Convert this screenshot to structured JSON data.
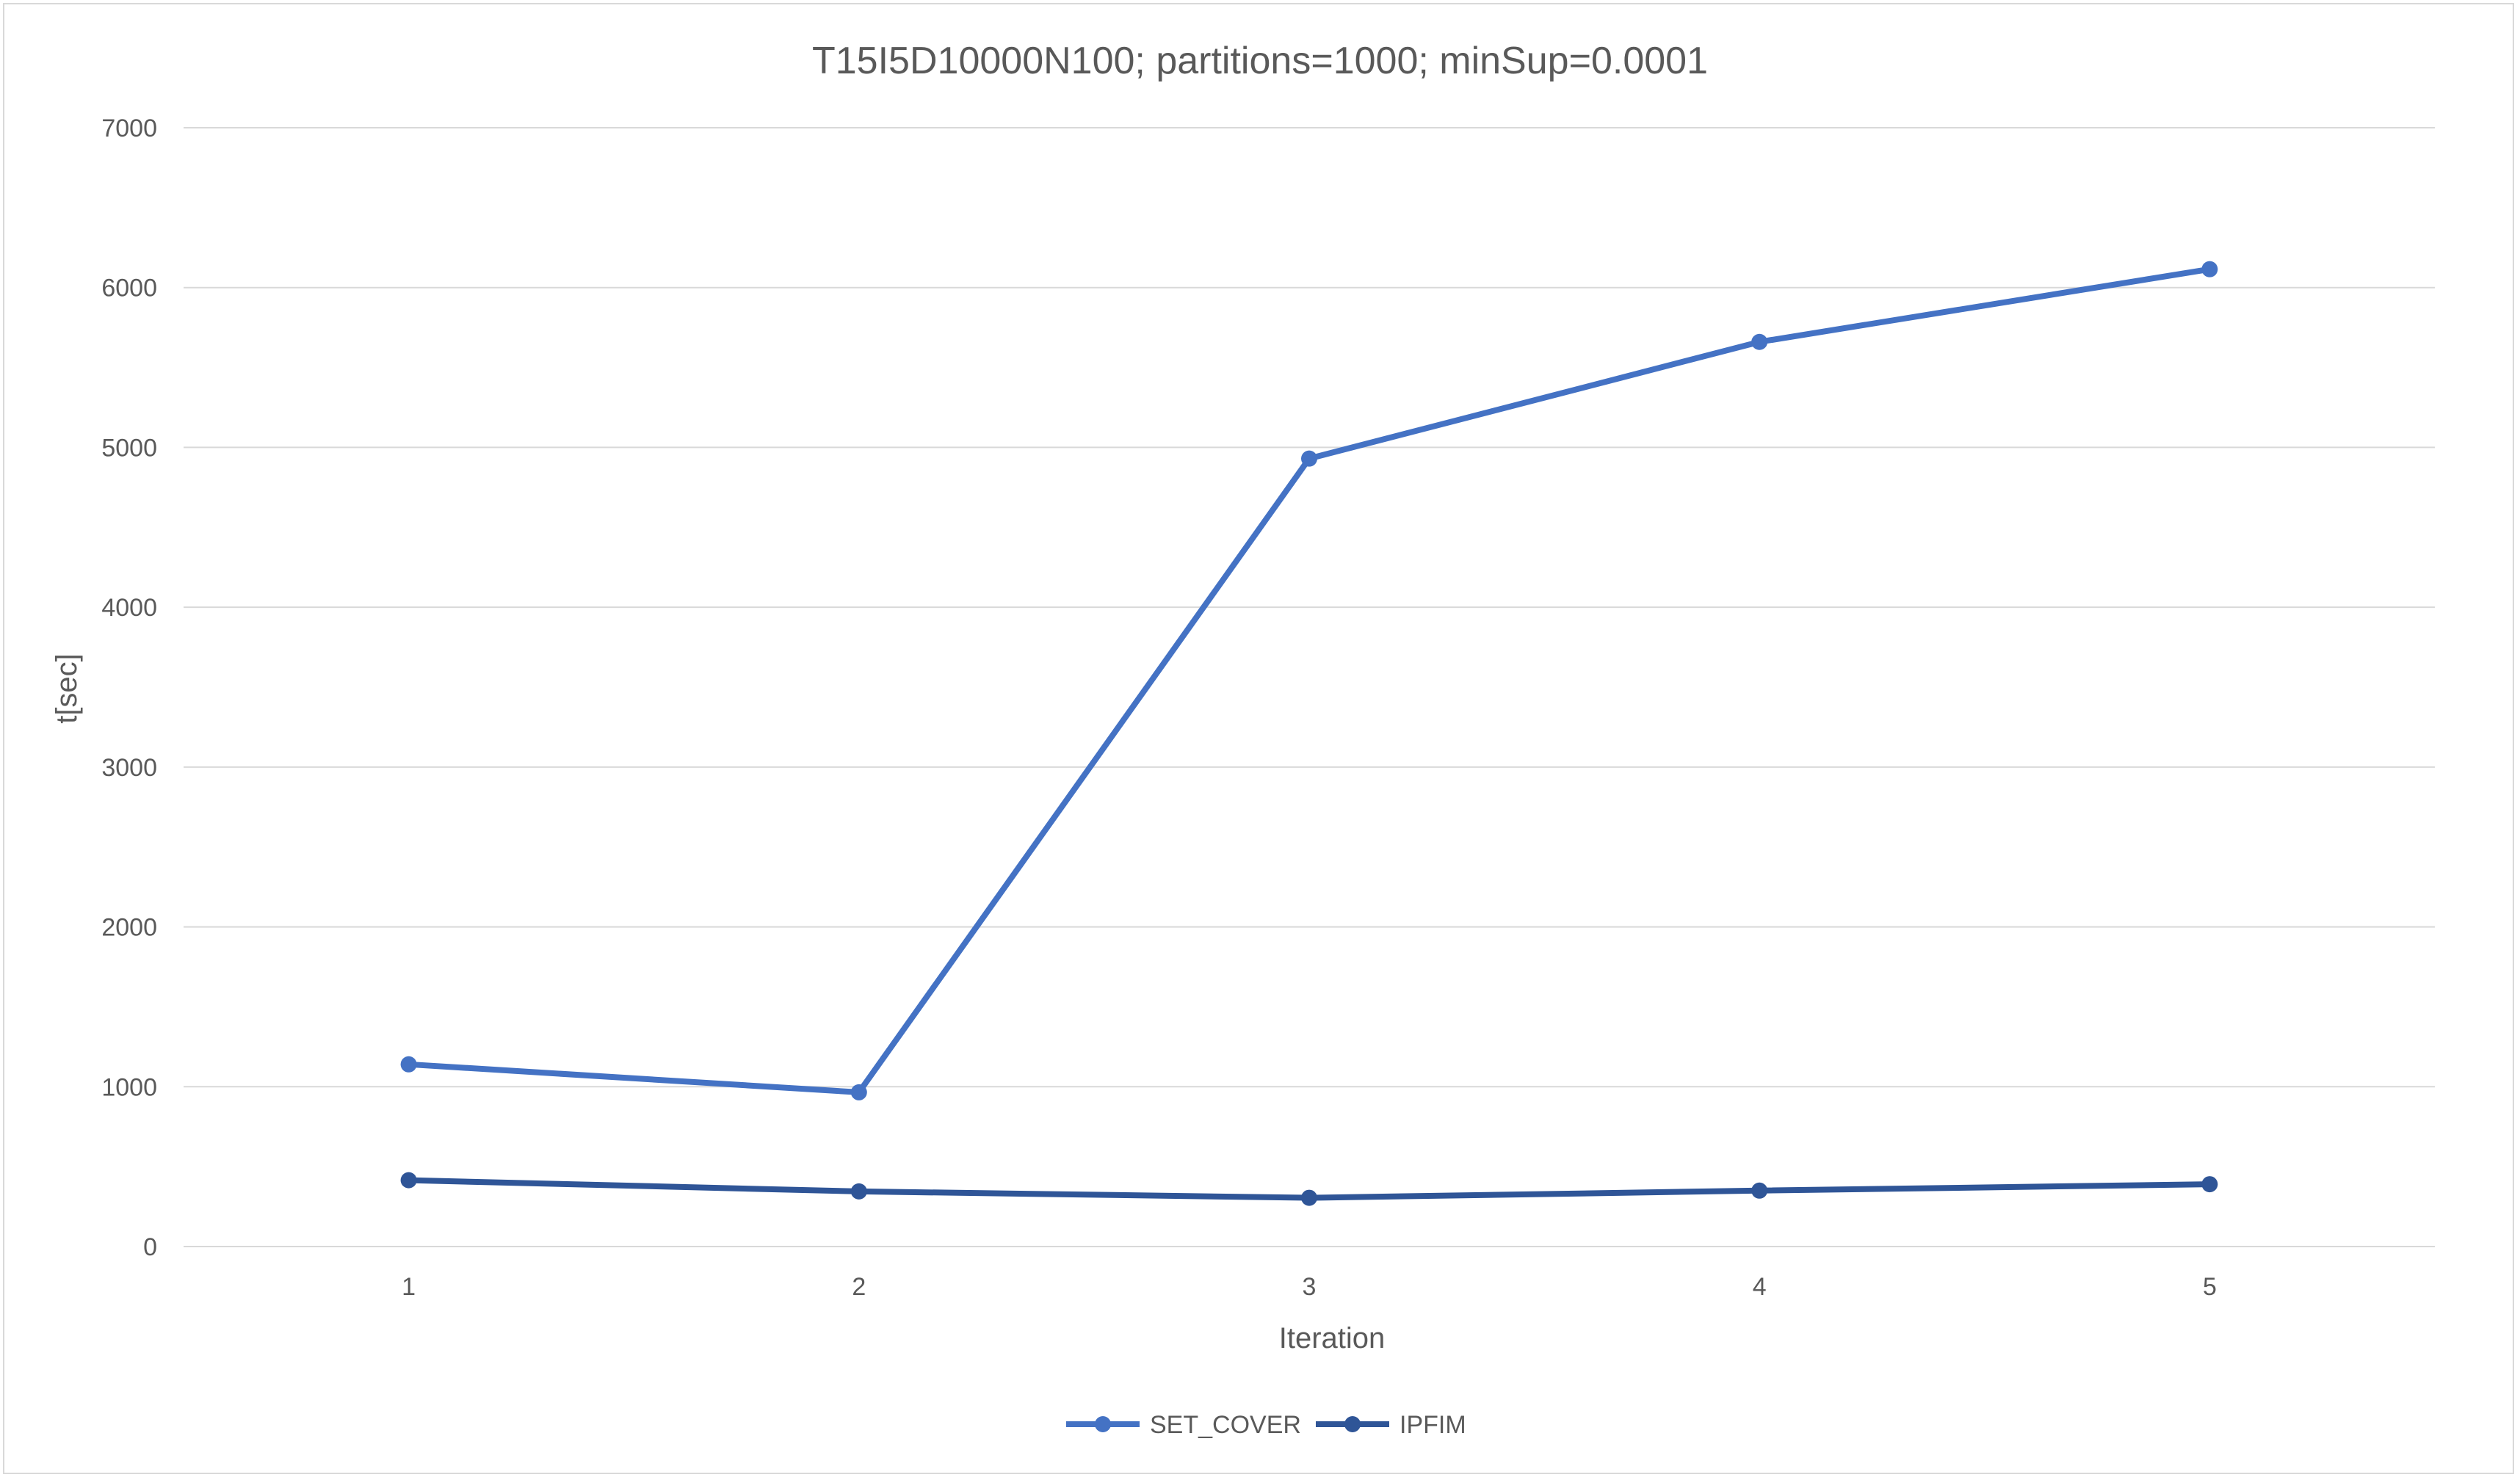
{
  "chart_data": {
    "type": "line",
    "title": "T15I5D10000N100; partitions=1000; minSup=0.0001",
    "xlabel": "Iteration",
    "ylabel": "t[sec]",
    "categories": [
      "1",
      "2",
      "3",
      "4",
      "5"
    ],
    "ylim": [
      0,
      7000
    ],
    "yticks": [
      0,
      1000,
      2000,
      3000,
      4000,
      5000,
      6000,
      7000
    ],
    "grid": true,
    "legend_position": "bottom",
    "series": [
      {
        "name": "SET_COVER",
        "color": "#4472C4",
        "values": [
          1140,
          965,
          4930,
          5660,
          6115
        ]
      },
      {
        "name": "IPFIM",
        "color": "#2F5597",
        "values": [
          415,
          345,
          305,
          350,
          390
        ]
      }
    ]
  }
}
